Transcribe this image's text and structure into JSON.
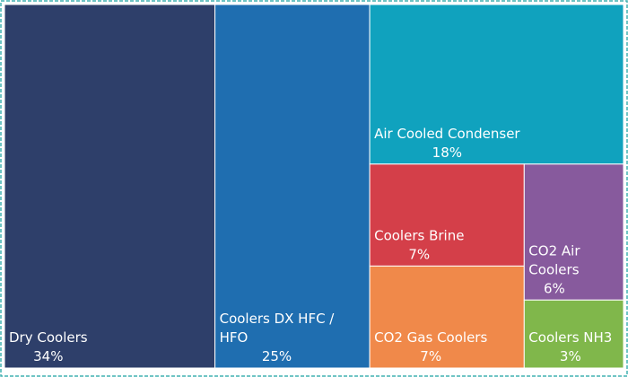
{
  "chart_data": {
    "type": "treemap",
    "categories": [
      "Dry Coolers",
      "Coolers DX HFC / HFO",
      "Air Cooled Condenser",
      "Coolers Brine",
      "CO2 Gas Coolers",
      "CO2 Air Coolers",
      "Coolers NH3"
    ],
    "values": [
      34,
      25,
      18,
      7,
      7,
      6,
      3
    ],
    "value_labels": [
      "34%",
      "25%",
      "18%",
      "7%",
      "7%",
      "6%",
      "3%"
    ],
    "colors": [
      "#2e3f6a",
      "#1f6eb0",
      "#10a2be",
      "#d43f49",
      "#f0894a",
      "#875a9d",
      "#80b74b"
    ]
  }
}
